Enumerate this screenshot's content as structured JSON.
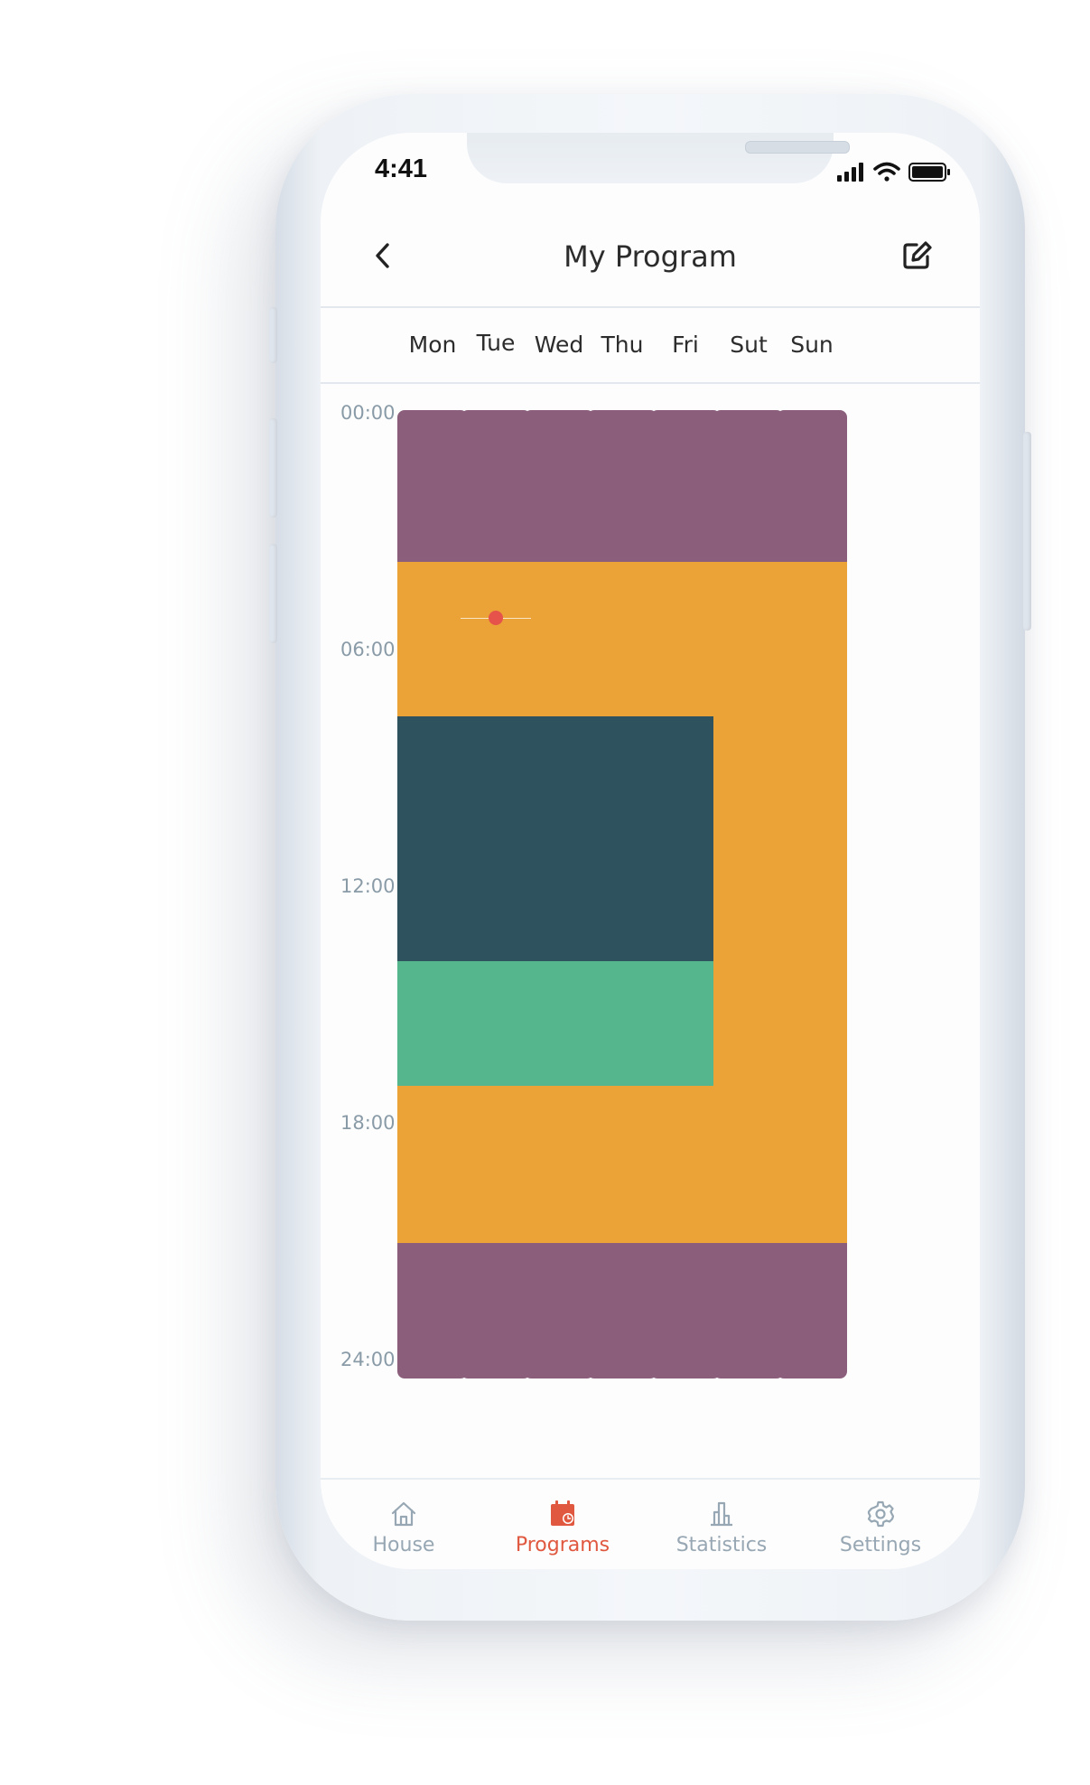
{
  "status_bar": {
    "time": "4:41"
  },
  "header": {
    "title": "My Program"
  },
  "days": [
    "Mon",
    "Tue",
    "Wed",
    "Thu",
    "Fri",
    "Sut",
    "Sun"
  ],
  "time_labels": [
    "00:00",
    "06:00",
    "12:00",
    "18:00",
    "24:00"
  ],
  "colors": {
    "night": "#8b5e7b",
    "home": "#eba337",
    "away": "#2e535e",
    "comfort": "#55b58c",
    "accent": "#e0583f"
  },
  "schedule": {
    "weekday": [
      {
        "start": 0,
        "end": 3.75,
        "mode": "night"
      },
      {
        "start": 3.75,
        "end": 7.6,
        "mode": "home"
      },
      {
        "start": 7.6,
        "end": 13.65,
        "mode": "away"
      },
      {
        "start": 13.65,
        "end": 16.75,
        "mode": "comfort"
      },
      {
        "start": 16.75,
        "end": 20.65,
        "mode": "home"
      },
      {
        "start": 20.65,
        "end": 24,
        "mode": "night"
      }
    ],
    "weekend": [
      {
        "start": 0,
        "end": 3.75,
        "mode": "night"
      },
      {
        "start": 3.75,
        "end": 20.65,
        "mode": "home"
      },
      {
        "start": 20.65,
        "end": 24,
        "mode": "night"
      }
    ]
  },
  "current_time_marker": {
    "day": "Tue",
    "hour": 5.15
  },
  "tabs": [
    {
      "label": "House",
      "icon": "house-icon",
      "active": false
    },
    {
      "label": "Programs",
      "icon": "calendar-icon",
      "active": true
    },
    {
      "label": "Statistics",
      "icon": "bar-chart-icon",
      "active": false
    },
    {
      "label": "Settings",
      "icon": "gear-icon",
      "active": false
    }
  ]
}
